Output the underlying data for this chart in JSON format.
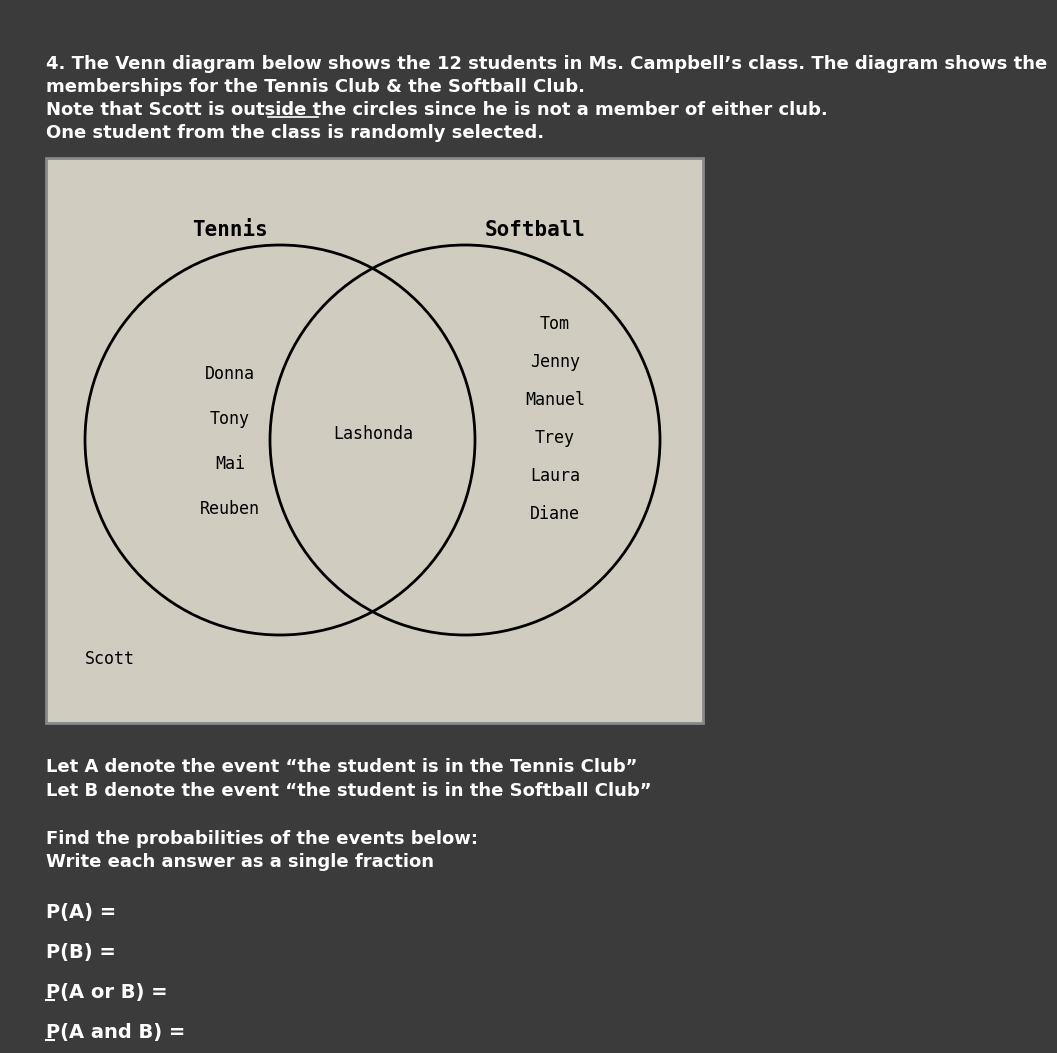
{
  "bg_color": "#3b3b3b",
  "venn_bg": "#d0ccc0",
  "venn_border_color": "#555555",
  "title_lines": [
    "4. The Venn diagram below shows the 12 students in Ms. Campbell’s class. The diagram shows the",
    "memberships for the Tennis Club & the Softball Club.",
    "Note that Scott is outside the circles since he is not a member of either club.",
    "One student from the class is randomly selected."
  ],
  "tennis_label": "Tennis",
  "softball_label": "Softball",
  "tennis_only": [
    "Donna",
    "Tony",
    "Mai",
    "Reuben"
  ],
  "intersection": [
    "Lashonda"
  ],
  "softball_only": [
    "Tom",
    "Jenny",
    "Manuel",
    "Trey",
    "Laura",
    "Diane"
  ],
  "outside": "Scott",
  "let_a": "Let A denote the event “the student is in the Tennis Club”",
  "let_b": "Let B denote the event “the student is in the Softball Club”",
  "find_text": "Find the probabilities of the events below:",
  "write_text": "Write each answer as a single fraction",
  "pa": "P(A) =",
  "pb": "P(B) =",
  "paorb": "P(A or B) =",
  "pandb": "P(A and B) =",
  "text_color": "#ffffff",
  "venn_text_color": "#000000",
  "font_size_main": 13,
  "font_size_venn": 12,
  "font_size_label": 15
}
